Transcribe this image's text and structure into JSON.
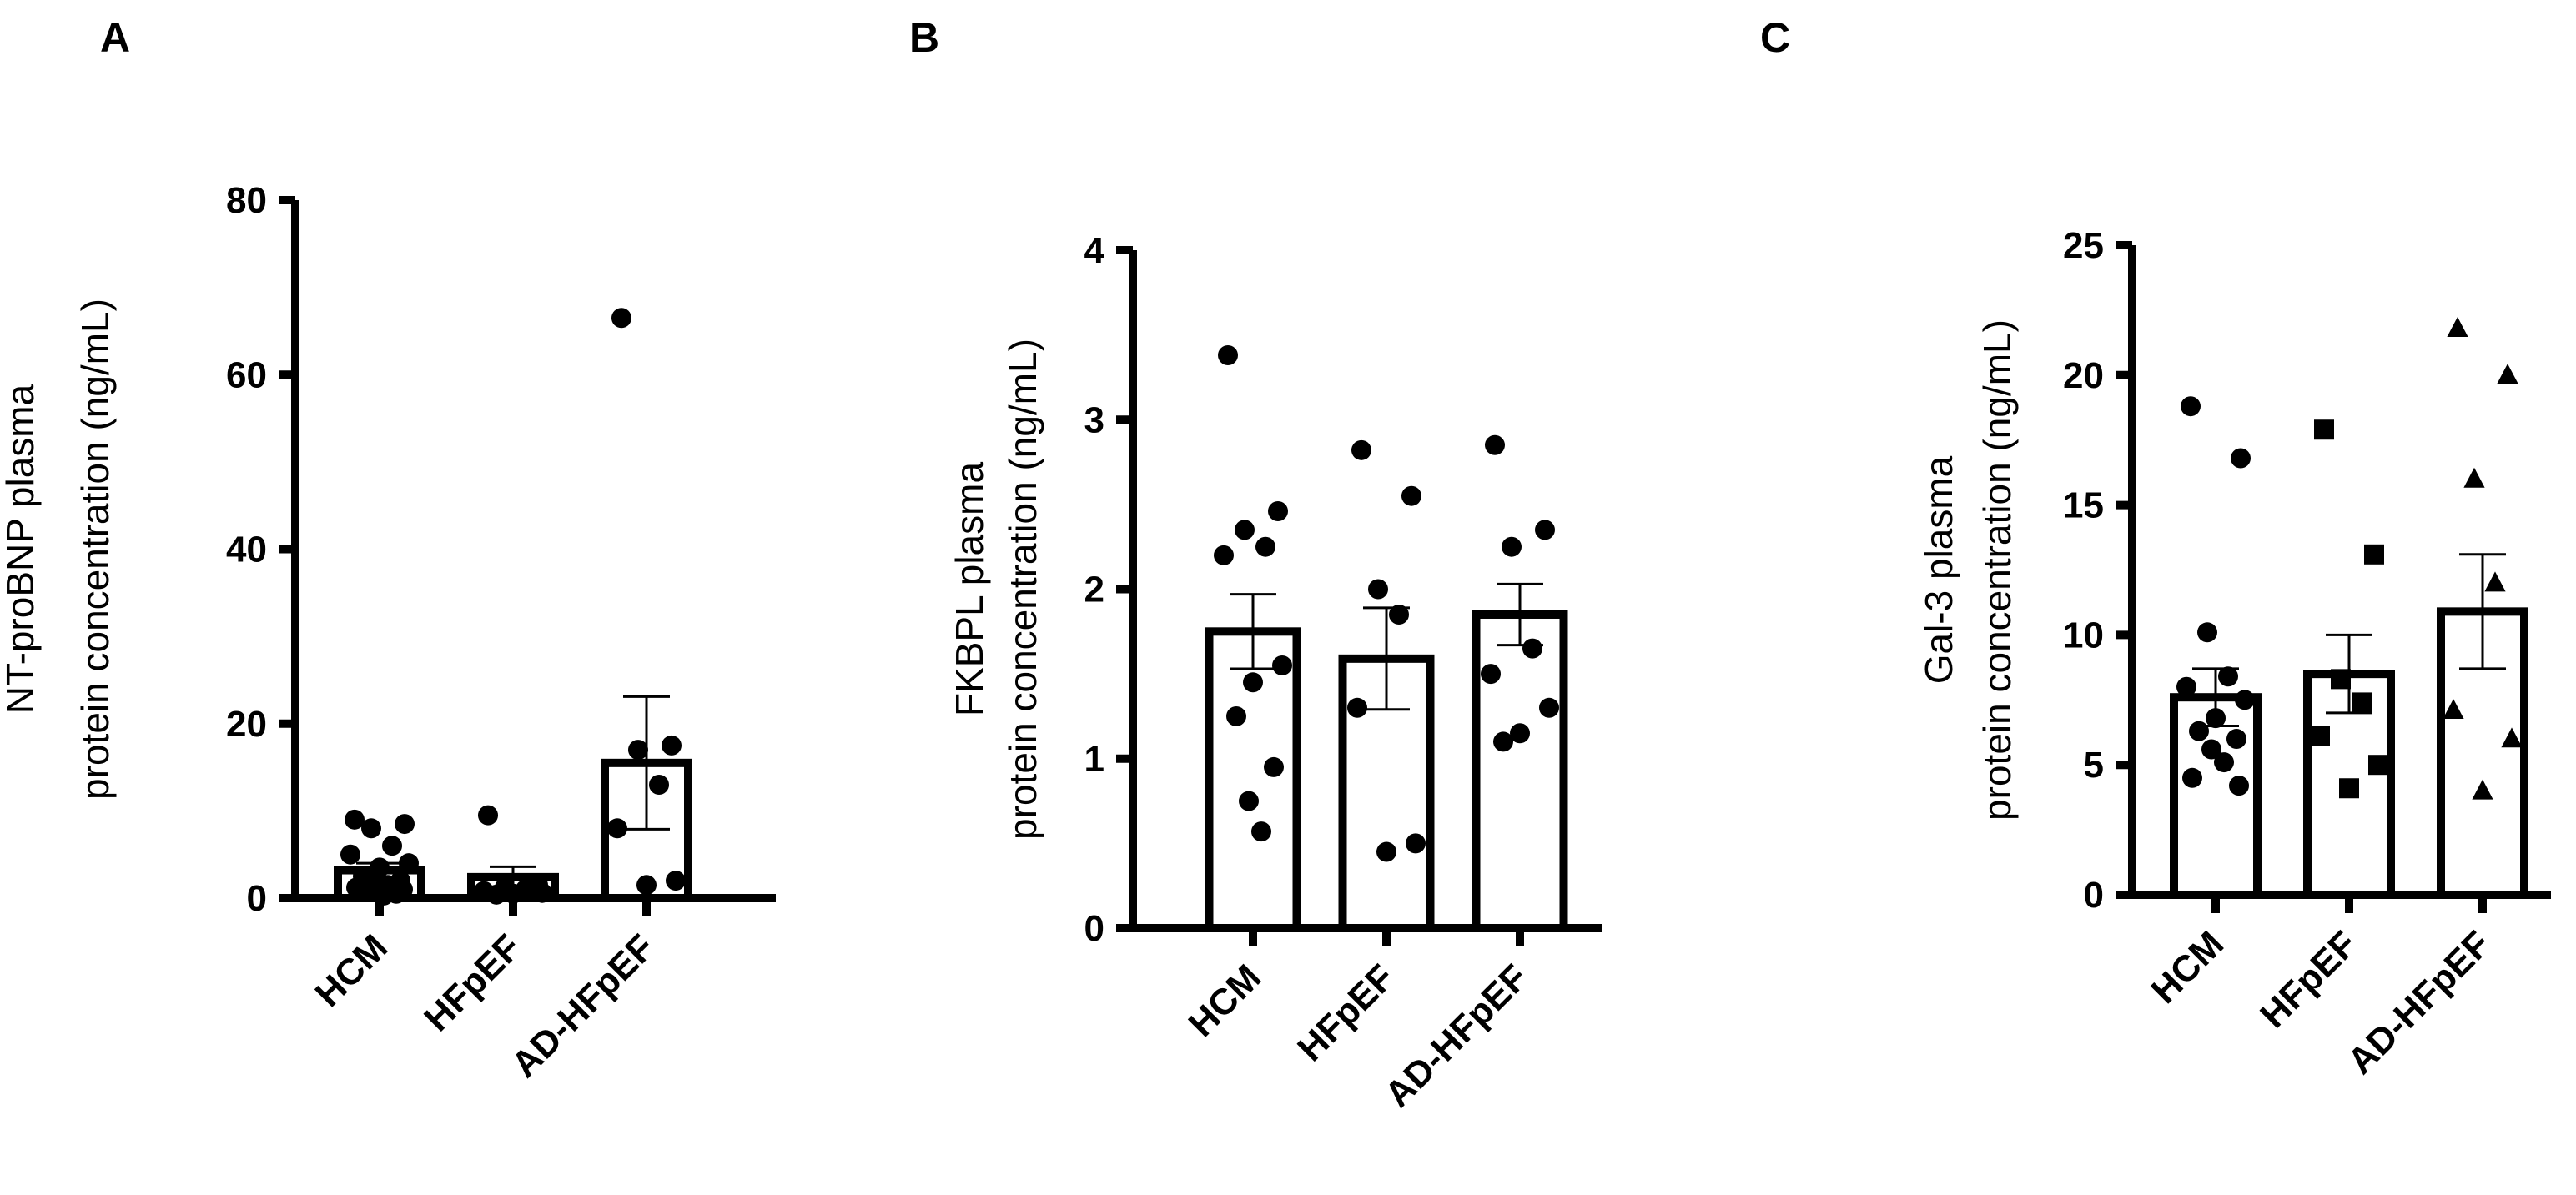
{
  "figure": {
    "panel_letters": [
      "A",
      "B",
      "C"
    ]
  },
  "chart_data": [
    {
      "panel": "A",
      "type": "bar",
      "categories": [
        "HCM",
        "HFpEF",
        "AD-HFpEF"
      ],
      "ylabel": [
        "NT-proBNP plasma",
        "protein concentration (ng/mL)"
      ],
      "ylim": [
        0,
        80
      ],
      "yticks": [
        0,
        20,
        40,
        60,
        80
      ],
      "means": [
        3.2,
        2.4,
        15.5
      ],
      "sem": [
        0.8,
        1.2,
        7.6
      ],
      "points": [
        [
          9,
          8.5,
          8,
          6,
          5,
          4,
          3.5,
          2.5,
          2,
          1.8,
          1.5,
          1.2,
          1,
          0.7,
          0.5,
          0.3
        ],
        [
          9.5,
          1.5,
          1.2,
          1,
          0.8,
          0.6,
          0.5,
          0.4
        ],
        [
          66.5,
          17.5,
          17,
          13,
          8,
          2,
          1.5
        ]
      ],
      "marker": "circle",
      "grid": false
    },
    {
      "panel": "B",
      "type": "bar",
      "categories": [
        "HCM",
        "HFpEF",
        "AD-HFpEF"
      ],
      "ylabel": [
        "FKBPL plasma",
        "protein concentration (ng/mL)"
      ],
      "ylim": [
        0,
        4
      ],
      "yticks": [
        0,
        1,
        2,
        3,
        4
      ],
      "means": [
        1.75,
        1.59,
        1.85
      ],
      "sem": [
        0.22,
        0.3,
        0.18
      ],
      "points": [
        [
          3.38,
          2.46,
          2.35,
          2.25,
          2.2,
          1.55,
          1.45,
          1.25,
          0.95,
          0.75,
          0.57
        ],
        [
          2.82,
          2.55,
          2.0,
          1.85,
          1.3,
          0.5,
          0.45
        ],
        [
          2.85,
          2.35,
          2.25,
          1.65,
          1.5,
          1.3,
          1.15,
          1.1
        ]
      ],
      "marker": "circle",
      "grid": false
    },
    {
      "panel": "C",
      "type": "bar",
      "categories": [
        "HCM",
        "HFpEF",
        "AD-HFpEF"
      ],
      "ylabel": [
        "Gal-3 plasma",
        "protein concentration (ng/mL)"
      ],
      "ylim": [
        0,
        25
      ],
      "yticks": [
        0,
        5,
        10,
        15,
        20,
        25
      ],
      "means": [
        7.6,
        8.5,
        10.9
      ],
      "sem": [
        1.1,
        1.5,
        2.2
      ],
      "points": [
        [
          18.8,
          16.8,
          10.1,
          8.4,
          8.0,
          7.5,
          6.8,
          6.3,
          6.0,
          5.6,
          5.1,
          4.5,
          4.2
        ],
        [
          17.9,
          13.1,
          8.3,
          7.4,
          6.1,
          5.0,
          4.1
        ],
        [
          21.8,
          20.0,
          16.0,
          12.0,
          7.1,
          6.0,
          4.0
        ]
      ],
      "markers": [
        "circle",
        "square",
        "triangle"
      ],
      "grid": false
    }
  ]
}
